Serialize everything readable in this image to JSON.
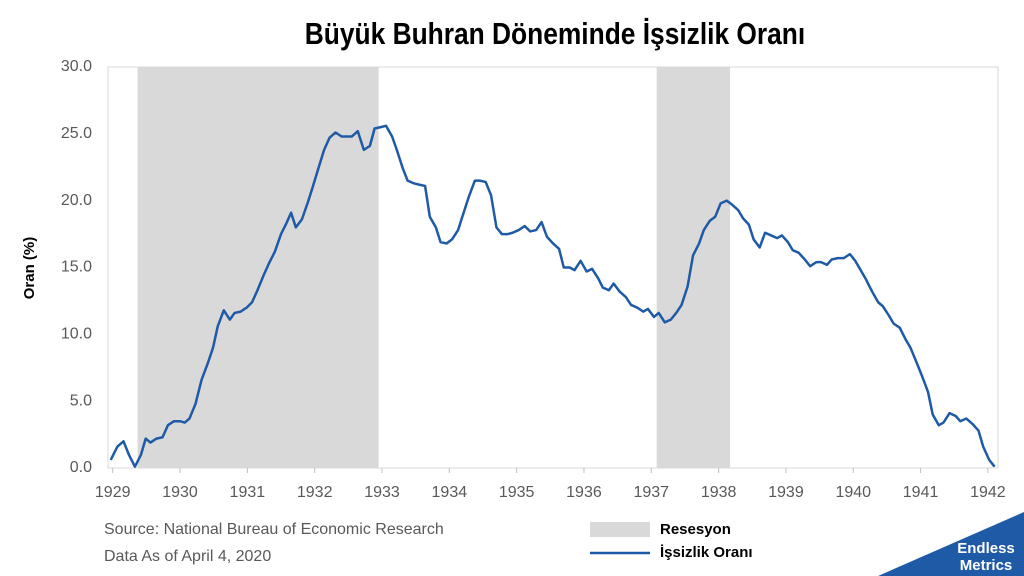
{
  "chart_data": {
    "type": "line",
    "title": "Büyük Buhran Döneminde İşsizlik Oranı",
    "ylabel": "Oran (%)",
    "source": [
      "Source: National Bureau of Economic Research",
      "Data As of April 4, 2020"
    ],
    "xlim": [
      1928.93,
      1942.15
    ],
    "xticks": [
      1929,
      1930,
      1931,
      1932,
      1933,
      1934,
      1935,
      1936,
      1937,
      1938,
      1939,
      1940,
      1941,
      1942
    ],
    "ylim": [
      0,
      30
    ],
    "yticks": [
      {
        "value": 0,
        "label": "0.0"
      },
      {
        "value": 5,
        "label": "5.0"
      },
      {
        "value": 10,
        "label": "10.0"
      },
      {
        "value": 15,
        "label": "15.0"
      },
      {
        "value": 20,
        "label": "20.0"
      },
      {
        "value": 25,
        "label": "25.0"
      },
      {
        "value": 30,
        "label": "30.0"
      }
    ],
    "grid": false,
    "recession": {
      "name": "Resesyon",
      "color": "#d9d9d9",
      "periods": [
        [
          1929.37,
          1932.95
        ],
        [
          1937.08,
          1938.17
        ]
      ]
    },
    "x": [
      1928.97,
      1929.07,
      1929.16,
      1929.24,
      1929.33,
      1929.42,
      1929.49,
      1929.56,
      1929.65,
      1929.74,
      1929.82,
      1929.91,
      1930.0,
      1930.07,
      1930.14,
      1930.23,
      1930.32,
      1930.41,
      1930.49,
      1930.56,
      1930.65,
      1930.74,
      1930.81,
      1930.9,
      1930.99,
      1931.07,
      1931.15,
      1931.24,
      1931.32,
      1931.41,
      1931.5,
      1931.57,
      1931.65,
      1931.72,
      1931.81,
      1931.9,
      1931.97,
      1932.06,
      1932.14,
      1932.22,
      1932.31,
      1932.4,
      1932.47,
      1932.55,
      1932.64,
      1932.73,
      1932.82,
      1932.89,
      1932.98,
      1933.06,
      1933.15,
      1933.22,
      1933.31,
      1933.38,
      1933.47,
      1933.55,
      1933.64,
      1933.71,
      1933.8,
      1933.87,
      1933.96,
      1934.04,
      1934.13,
      1934.2,
      1934.29,
      1934.38,
      1934.45,
      1934.54,
      1934.62,
      1934.7,
      1934.78,
      1934.87,
      1934.94,
      1935.03,
      1935.12,
      1935.2,
      1935.29,
      1935.37,
      1935.45,
      1935.54,
      1935.63,
      1935.7,
      1935.79,
      1935.86,
      1935.95,
      1936.04,
      1936.12,
      1936.21,
      1936.28,
      1936.37,
      1936.44,
      1936.53,
      1936.62,
      1936.7,
      1936.79,
      1936.88,
      1936.95,
      1937.04,
      1937.11,
      1937.2,
      1937.29,
      1937.37,
      1937.45,
      1937.54,
      1937.62,
      1937.71,
      1937.78,
      1937.87,
      1937.95,
      1938.03,
      1938.12,
      1938.2,
      1938.29,
      1938.36,
      1938.45,
      1938.52,
      1938.61,
      1938.69,
      1938.78,
      1938.87,
      1938.94,
      1939.03,
      1939.1,
      1939.19,
      1939.28,
      1939.36,
      1939.45,
      1939.52,
      1939.61,
      1939.68,
      1939.77,
      1939.86,
      1939.95,
      1940.03,
      1940.11,
      1940.19,
      1940.28,
      1940.37,
      1940.44,
      1940.53,
      1940.6,
      1940.69,
      1940.78,
      1940.85,
      1940.94,
      1941.02,
      1941.11,
      1941.18,
      1941.27,
      1941.34,
      1941.43,
      1941.52,
      1941.59,
      1941.68,
      1941.77,
      1941.86,
      1941.93,
      1942.02,
      1942.1
    ],
    "series": [
      {
        "name": "İşsizlik Oranı",
        "color": "#1f5aa6",
        "values": [
          0.6,
          1.6,
          2.0,
          1.0,
          0.1,
          1.0,
          2.2,
          1.9,
          2.2,
          2.3,
          3.2,
          3.5,
          3.5,
          3.4,
          3.7,
          4.8,
          6.6,
          7.8,
          9.0,
          10.6,
          11.8,
          11.1,
          11.6,
          11.7,
          12.0,
          12.4,
          13.3,
          14.4,
          15.3,
          16.2,
          17.5,
          18.2,
          19.1,
          18.0,
          18.6,
          19.9,
          21.0,
          22.5,
          23.8,
          24.7,
          25.1,
          24.8,
          24.8,
          24.8,
          25.2,
          23.8,
          24.1,
          25.4,
          25.5,
          25.6,
          24.8,
          23.8,
          22.4,
          21.5,
          21.3,
          21.2,
          21.1,
          18.8,
          18.0,
          16.9,
          16.8,
          17.1,
          17.8,
          18.9,
          20.3,
          21.5,
          21.5,
          21.4,
          20.4,
          18.0,
          17.5,
          17.5,
          17.6,
          17.8,
          18.1,
          17.7,
          17.8,
          18.4,
          17.3,
          16.8,
          16.4,
          15.0,
          15.0,
          14.8,
          15.5,
          14.7,
          14.9,
          14.2,
          13.5,
          13.3,
          13.8,
          13.2,
          12.8,
          12.2,
          12.0,
          11.7,
          11.9,
          11.3,
          11.6,
          10.9,
          11.1,
          11.6,
          12.2,
          13.6,
          15.9,
          16.8,
          17.8,
          18.5,
          18.8,
          19.8,
          20.0,
          19.7,
          19.3,
          18.7,
          18.2,
          17.1,
          16.5,
          17.6,
          17.4,
          17.2,
          17.4,
          16.9,
          16.3,
          16.1,
          15.6,
          15.1,
          15.4,
          15.4,
          15.2,
          15.6,
          15.7,
          15.7,
          16.0,
          15.5,
          14.8,
          14.1,
          13.2,
          12.4,
          12.1,
          11.4,
          10.8,
          10.5,
          9.6,
          9.0,
          7.9,
          6.9,
          5.7,
          4.0,
          3.2,
          3.4,
          4.1,
          3.9,
          3.5,
          3.7,
          3.3,
          2.8,
          1.6,
          0.6,
          0.1
        ]
      }
    ]
  },
  "logo": [
    "Endless",
    "Metrics"
  ]
}
